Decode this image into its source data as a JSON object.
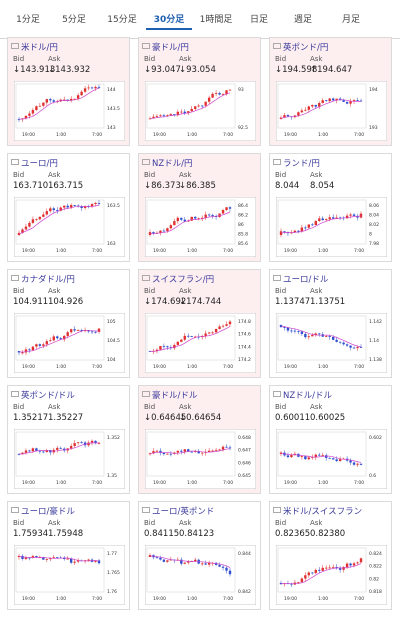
{
  "tabs": [
    "1分足",
    "5分足",
    "15分足",
    "30分足",
    "1時間足",
    "日足",
    "週足",
    "月足"
  ],
  "active_tab": "30分足",
  "labels": {
    "bid": "Bid",
    "ask": "Ask"
  },
  "cards": [
    {
      "title": "米ドル/円",
      "bid": "↓143.913",
      "ask": "↓143.932",
      "highlight": true,
      "ticks": [
        "144",
        "143.5",
        "143"
      ],
      "times": [
        "19:00",
        "1:00",
        "7:00"
      ],
      "trend": "up"
    },
    {
      "title": "豪ドル/円",
      "bid": "↓93.047",
      "ask": "↓93.054",
      "highlight": true,
      "ticks": [
        "93",
        "92.5"
      ],
      "times": [
        "19:00",
        "1:00",
        "7:00"
      ],
      "trend": "up"
    },
    {
      "title": "英ポンド/円",
      "bid": "↓194.598",
      "ask": "↑194.647",
      "highlight": true,
      "ticks": [
        "194",
        "193"
      ],
      "times": [
        "19:00",
        "1:00",
        "7:00"
      ],
      "trend": "up"
    },
    {
      "title": "ユーロ/円",
      "bid": "163.710",
      "ask": "163.715",
      "highlight": false,
      "ticks": [
        "163.5",
        "163"
      ],
      "times": [
        "19:00",
        "1:00",
        "7:00"
      ],
      "trend": "up"
    },
    {
      "title": "NZドル/円",
      "bid": "↓86.373",
      "ask": "↓86.385",
      "highlight": true,
      "ticks": [
        "86.4",
        "86.2",
        "86",
        "85.8",
        "85.6"
      ],
      "times": [
        "19:00",
        "1:00",
        "7:00"
      ],
      "trend": "up"
    },
    {
      "title": "ランド/円",
      "bid": "8.044",
      "ask": "8.054",
      "highlight": false,
      "ticks": [
        "8.06",
        "8.04",
        "8.02",
        "8",
        "7.98"
      ],
      "times": [
        "19:00",
        "1:00",
        "7:00"
      ],
      "trend": "up"
    },
    {
      "title": "カナダドル/円",
      "bid": "104.911",
      "ask": "104.926",
      "highlight": false,
      "ticks": [
        "105",
        "104.5",
        "104"
      ],
      "times": [
        "19:00",
        "1:00",
        "7:00"
      ],
      "trend": "up"
    },
    {
      "title": "スイスフラン/円",
      "bid": "↓174.692",
      "ask": "↓174.744",
      "highlight": true,
      "ticks": [
        "174.8",
        "174.6",
        "174.4",
        "174.2"
      ],
      "times": [
        "19:00",
        "1:00",
        "7:00"
      ],
      "trend": "up"
    },
    {
      "title": "ユーロ/ドル",
      "bid": "1.13747",
      "ask": "1.13751",
      "highlight": false,
      "ticks": [
        "1.142",
        "1.14",
        "1.138"
      ],
      "times": [
        "19:00",
        "1:00",
        "7:00"
      ],
      "trend": "down"
    },
    {
      "title": "英ポンド/ドル",
      "bid": "1.35217",
      "ask": "1.35227",
      "highlight": false,
      "ticks": [
        "1.352",
        "1.35"
      ],
      "times": [
        "19:00",
        "1:00",
        "7:00"
      ],
      "trend": "flat"
    },
    {
      "title": "豪ドル/ドル",
      "bid": "↓0.64645",
      "ask": "↓0.64654",
      "highlight": true,
      "ticks": [
        "0.648",
        "0.647",
        "0.646",
        "0.645"
      ],
      "times": [
        "19:00",
        "1:00",
        "7:00"
      ],
      "trend": "flat"
    },
    {
      "title": "NZドル/ドル",
      "bid": "0.60011",
      "ask": "0.60025",
      "highlight": false,
      "ticks": [
        "0.602",
        "0.6"
      ],
      "times": [
        "19:00",
        "1:00",
        "7:00"
      ],
      "trend": "flat"
    },
    {
      "title": "ユーロ/豪ドル",
      "bid": "1.75934",
      "ask": "1.75948",
      "highlight": false,
      "ticks": [
        "1.77",
        "1.765",
        "1.76"
      ],
      "times": [
        "19:00",
        "1:00",
        "7:00"
      ],
      "trend": "down"
    },
    {
      "title": "ユーロ/英ポンド",
      "bid": "0.84115",
      "ask": "0.84123",
      "highlight": false,
      "ticks": [
        "0.844",
        "0.842"
      ],
      "times": [
        "19:00",
        "1:00",
        "7:00"
      ],
      "trend": "down"
    },
    {
      "title": "米ドル/スイスフラン",
      "bid": "0.82365",
      "ask": "0.82380",
      "highlight": false,
      "ticks": [
        "0.824",
        "0.822",
        "0.82",
        "0.818"
      ],
      "times": [
        "19:00",
        "1:00",
        "7:00"
      ],
      "trend": "up"
    }
  ],
  "colors": {
    "up_candle": "#e03030",
    "down_candle": "#3050d0",
    "ma": "#cc44cc",
    "highlight_bg": "#fdeef0",
    "active_tab": "#1f5fb0"
  }
}
